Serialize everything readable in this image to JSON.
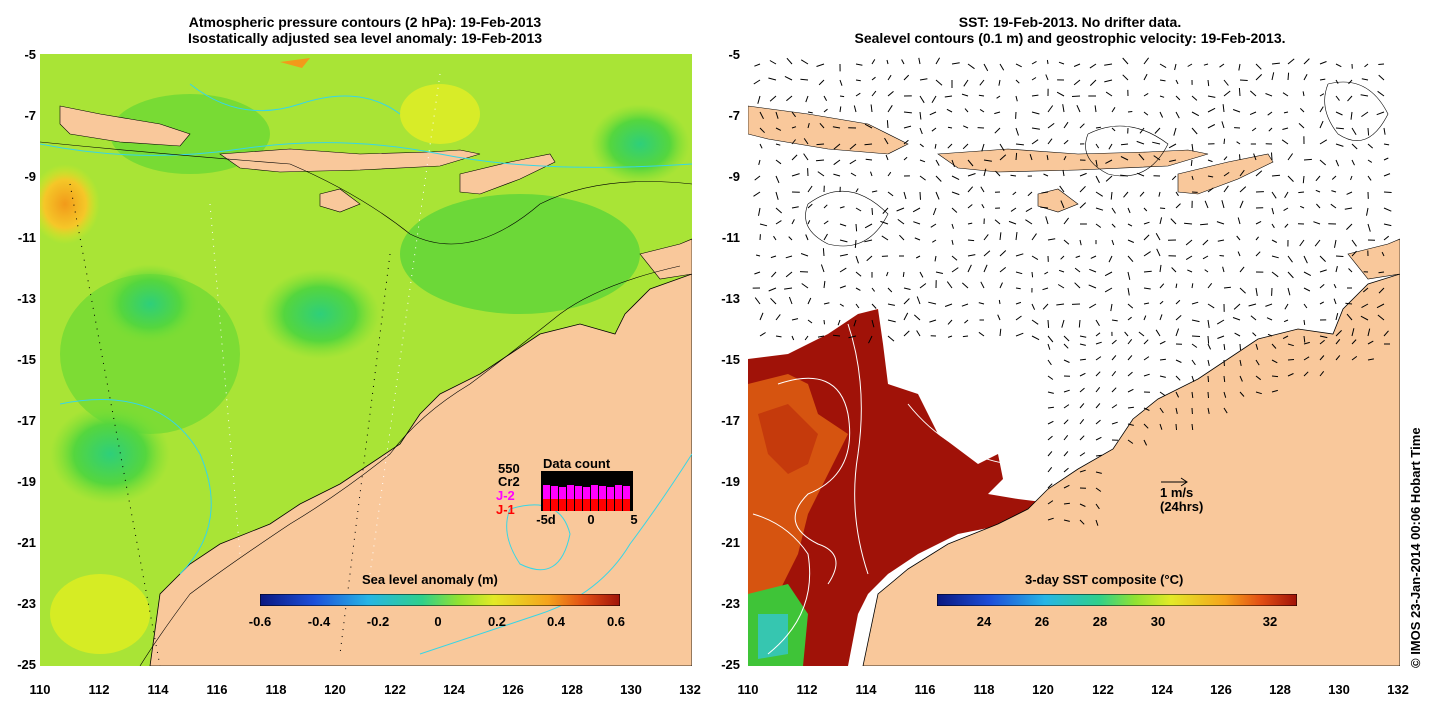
{
  "left_panel": {
    "title_line1": "Atmospheric pressure contours (2 hPa): 19-Feb-2013",
    "title_line2": "Isostatically adjusted sea level anomaly: 19-Feb-2013",
    "colorbar_title": "Sea level anomaly (m)",
    "colorbar_ticks": [
      "-0.6",
      "-0.4",
      "-0.2",
      "0",
      "0.2",
      "0.4",
      "0.6"
    ],
    "legend": {
      "satellites": [
        "550",
        "Cr2",
        "J-2",
        "J-1"
      ],
      "satellite_colors": [
        "#000000",
        "#000000",
        "#ff00ff",
        "#ff0000"
      ],
      "data_count_title": "Data count",
      "axis_ticks": [
        "-5d",
        "0",
        "5"
      ]
    }
  },
  "right_panel": {
    "title_line1": "SST: 19-Feb-2013. No drifter data.",
    "title_line2": "Sealevel contours (0.1 m) and geostrophic velocity: 19-Feb-2013.",
    "colorbar_title": "3-day SST composite (°C)",
    "colorbar_ticks": [
      "24",
      "26",
      "28",
      "30",
      "32"
    ],
    "scale_arrow_label1": "1 m/s",
    "scale_arrow_label2": "(24hrs)"
  },
  "y_axis_ticks": [
    "-5",
    "-7",
    "-9",
    "-11",
    "-13",
    "-15",
    "-17",
    "-19",
    "-21",
    "-23",
    "-25"
  ],
  "x_axis_ticks": [
    "110",
    "112",
    "114",
    "116",
    "118",
    "120",
    "122",
    "124",
    "126",
    "128",
    "130",
    "132"
  ],
  "credit": "© IMOS 23-Jan-2014 00:06 Hobart Time",
  "colors": {
    "land": "#f9c89b",
    "ocean_sla_base": "#b8e830",
    "sst_hot": "#a01208"
  }
}
